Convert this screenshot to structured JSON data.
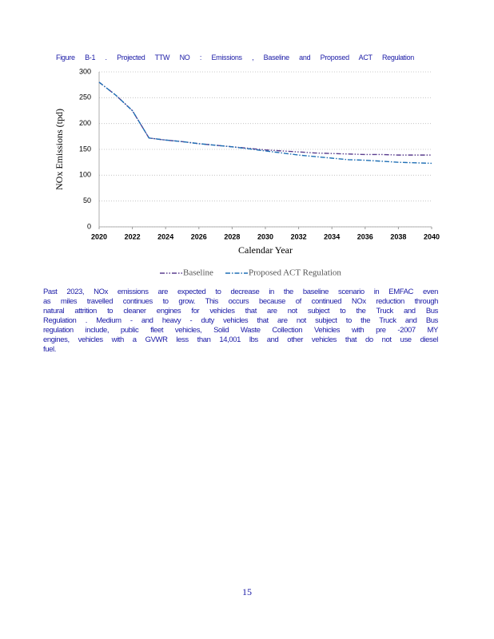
{
  "figure_title": "Figure B-1 . Projected TTW NO : Emissions , Baseline and Proposed ACT Regulation",
  "chart_data": {
    "type": "line",
    "ylabel": "NOx Emissions (tpd)",
    "xlabel": "Calendar Year",
    "x": [
      2020,
      2021,
      2022,
      2023,
      2024,
      2025,
      2026,
      2027,
      2028,
      2029,
      2030,
      2031,
      2032,
      2033,
      2034,
      2035,
      2036,
      2037,
      2038,
      2039,
      2040
    ],
    "series": [
      {
        "name": "Baseline",
        "color": "#5b3f8f",
        "values": [
          280,
          255,
          225,
          172,
          168,
          165,
          161,
          158,
          155,
          152,
          149,
          147,
          145,
          143,
          142,
          141,
          140,
          140,
          139,
          139,
          139
        ]
      },
      {
        "name": "Proposed ACT Regulation",
        "color": "#1f6fb5",
        "values": [
          280,
          255,
          225,
          172,
          168,
          165,
          161,
          158,
          155,
          151,
          147,
          143,
          139,
          136,
          133,
          130,
          129,
          127,
          125,
          124,
          123
        ]
      }
    ],
    "xlim": [
      2020,
      2040
    ],
    "xticks": [
      2020,
      2022,
      2024,
      2026,
      2028,
      2030,
      2032,
      2034,
      2036,
      2038,
      2040
    ],
    "ylim": [
      0,
      300
    ],
    "yticks": [
      0,
      50,
      100,
      150,
      200,
      250,
      300
    ],
    "grid": true,
    "legend": "bottom"
  },
  "paragraph": [
    "Past 2023, NOx emissions are expected to decrease in the baseline scenario in EMFAC even",
    "as miles travelled continues to grow. This occurs because of continued NOx reduction through",
    "natural attrition to cleaner engines for vehicles that are not subject to the Truck and Bus",
    "Regulation . Medium - and heavy - duty vehicles that are not subject to the Truck and Bus",
    "regulation include, public fleet vehicles, Solid Waste Collection Vehicles with pre -2007 MY",
    "engines, vehicles with a GVWR less than 14,001 lbs and other vehicles that do not use diesel",
    "fuel."
  ],
  "page_number": "15"
}
